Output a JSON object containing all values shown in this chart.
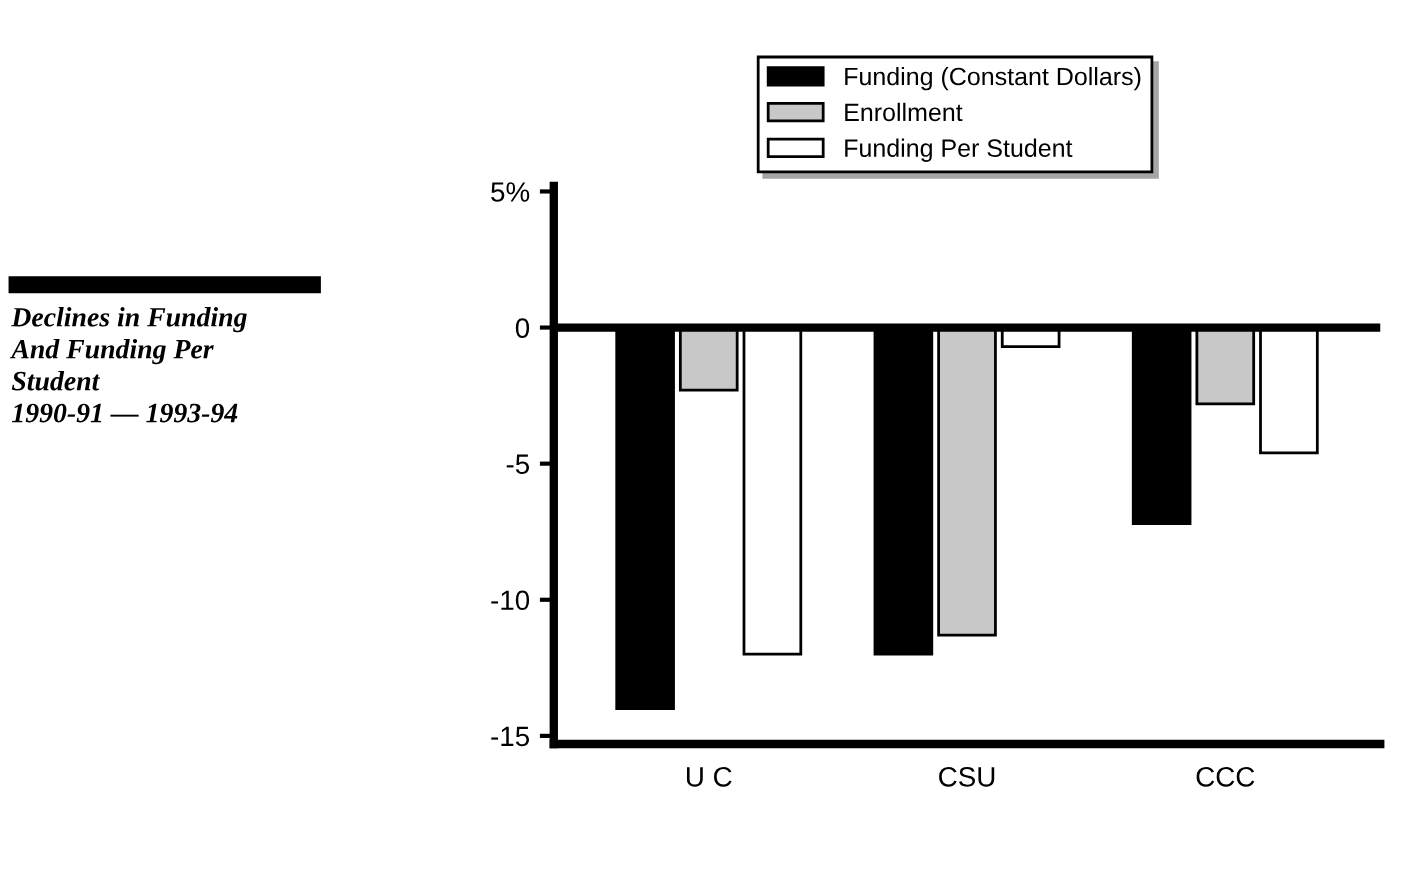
{
  "chart_data": {
    "type": "bar",
    "title": "Declines in Funding\nAnd Funding Per\nStudent\n1990-91 — 1993-94",
    "categories": [
      "U C",
      "CSU",
      "CCC"
    ],
    "series": [
      {
        "name": "Funding (Constant Dollars)",
        "color": "#000000",
        "values": [
          -14,
          -12,
          -7.2
        ]
      },
      {
        "name": "Enrollment",
        "color": "#c8c8c8",
        "values": [
          -2.3,
          -11.3,
          -2.8
        ]
      },
      {
        "name": "Funding Per Student",
        "color": "#ffffff",
        "values": [
          -12,
          -0.7,
          -4.6
        ]
      }
    ],
    "ylim": [
      -15.3,
      5.2
    ],
    "yticks": [
      {
        "value": 5,
        "label": "5%"
      },
      0,
      -5,
      -10,
      -15
    ],
    "ref_lines": [
      {
        "axis": "y",
        "value": 0,
        "label": null,
        "color": "#000000"
      }
    ],
    "grid": false,
    "legend": "top right"
  }
}
